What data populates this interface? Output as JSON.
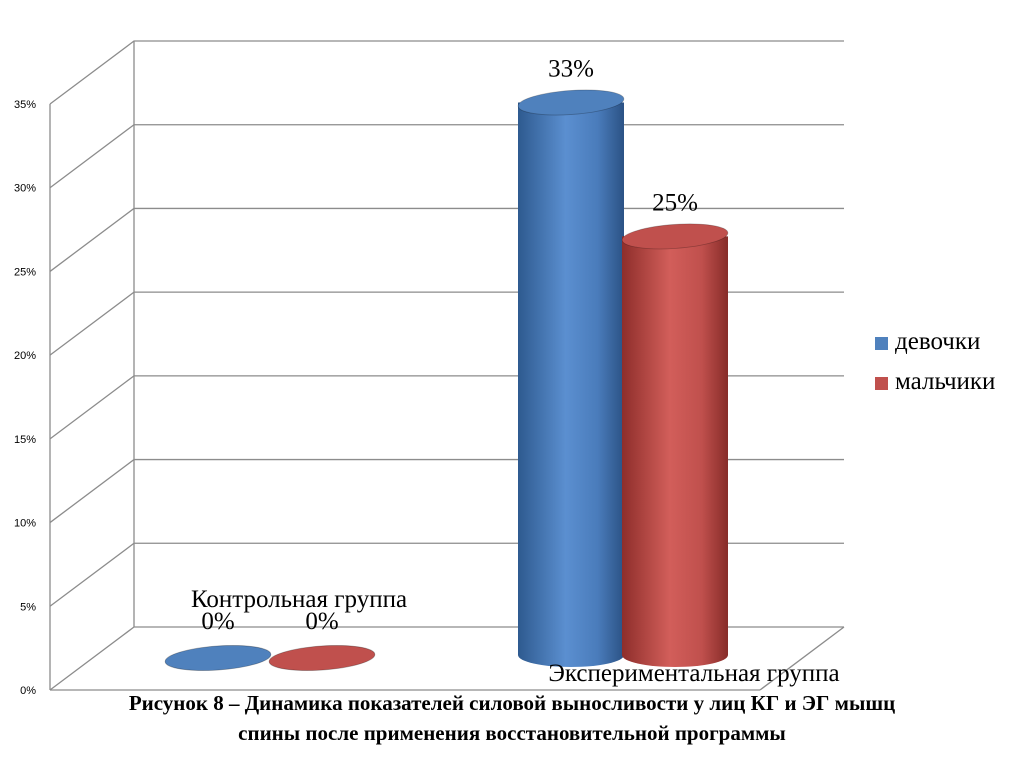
{
  "chart_data": {
    "type": "bar",
    "style": "3d-cylinder",
    "categories": [
      "Контрольная группа",
      "Экспериментальная группа"
    ],
    "series": [
      {
        "name": "девочки",
        "values": [
          0,
          33
        ],
        "color": "#4F81BD"
      },
      {
        "name": "мальчики",
        "values": [
          0,
          25
        ],
        "color": "#C0504D"
      }
    ],
    "data_labels": [
      [
        "0%",
        "33%"
      ],
      [
        "0%",
        "25%"
      ]
    ],
    "y_ticks": [
      "0%",
      "5%",
      "10%",
      "15%",
      "20%",
      "25%",
      "30%",
      "35%"
    ],
    "ylim": [
      0,
      35
    ],
    "y_unit": "%",
    "grid": true,
    "legend_position": "right"
  },
  "caption": {
    "line1": "Рисунок 8 – Динамика показателей силовой выносливости у лиц КГ и ЭГ мышц",
    "line2": "спины после применения восстановительной программы"
  }
}
